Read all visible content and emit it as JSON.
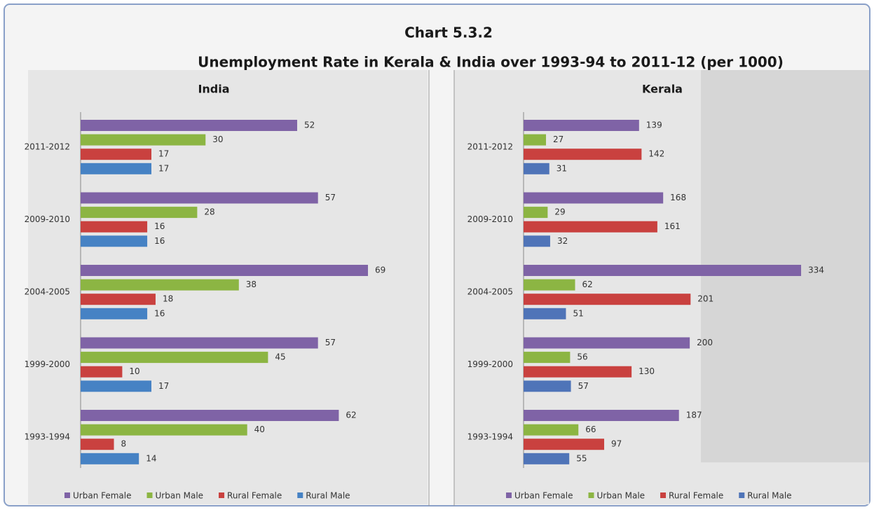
{
  "header": {
    "label": "Chart 5.3.2",
    "title": "Unemployment Rate in Kerala & India over 1993-94 to 2011-12 (per 1000)"
  },
  "chart_data": [
    {
      "type": "bar",
      "title": "India",
      "categories": [
        "2011-2012",
        "2009-2010",
        "2004-2005",
        "1999-2000",
        "1993-1994"
      ],
      "series": [
        {
          "name": "Urban Female",
          "color": "#7f63a6",
          "values": [
            52,
            57,
            69,
            57,
            62
          ]
        },
        {
          "name": "Urban Male",
          "color": "#8cb543",
          "values": [
            30,
            28,
            38,
            45,
            40
          ]
        },
        {
          "name": "Rural Female",
          "color": "#c9413f",
          "values": [
            17,
            16,
            18,
            10,
            8
          ]
        },
        {
          "name": "Rural Male",
          "color": "#4682c4",
          "values": [
            17,
            16,
            16,
            17,
            14
          ]
        }
      ]
    },
    {
      "type": "bar",
      "title": "Kerala",
      "categories": [
        "2011-2012",
        "2009-2010",
        "2004-2005",
        "1999-2000",
        "1993-1994"
      ],
      "series": [
        {
          "name": "Urban Female",
          "color": "#7f63a6",
          "values": [
            139,
            168,
            334,
            200,
            187
          ]
        },
        {
          "name": "Urban Male",
          "color": "#8cb543",
          "values": [
            27,
            29,
            62,
            56,
            66
          ]
        },
        {
          "name": "Rural Female",
          "color": "#c9413f",
          "values": [
            142,
            161,
            201,
            130,
            97
          ]
        },
        {
          "name": "Rural Male",
          "color": "#4f74b8",
          "values": [
            31,
            32,
            51,
            57,
            55
          ]
        }
      ]
    }
  ]
}
